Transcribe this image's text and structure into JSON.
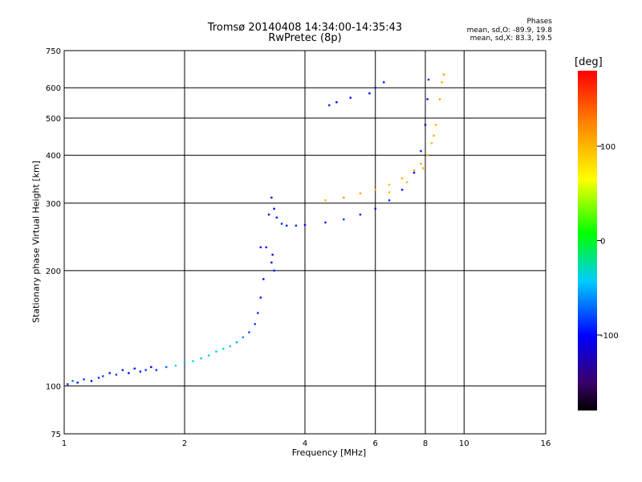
{
  "title": {
    "line1": "Tromsø 20140408 14:34:00-14:35:43",
    "line2": "RwPretec (8p)"
  },
  "phases": {
    "heading": "Phases",
    "o_line": "mean, sd,O: -89.9, 19.8",
    "x_line": "mean, sd,X: 83.3, 19.5"
  },
  "colorbar": {
    "unit_label": "[deg]",
    "range": [
      -180,
      180
    ],
    "ticks": [
      "100",
      "0",
      "-100"
    ],
    "tick_values": [
      100,
      0,
      -100
    ]
  },
  "chart_data": {
    "type": "scatter",
    "title": "Tromsø 20140408 14:34:00-14:35:43",
    "subtitle": "RwPretec (8p)",
    "xlabel": "Frequency [MHz]",
    "ylabel": "Stationary phase Virtual Height [km]",
    "x_scale": "log",
    "y_scale": "log",
    "xlim": [
      1,
      16
    ],
    "ylim": [
      75,
      750
    ],
    "x_ticks": [
      1,
      2,
      4,
      6,
      8,
      10,
      16
    ],
    "x_tick_labels": [
      "1",
      "2",
      "4",
      "6",
      "8",
      "10",
      "16"
    ],
    "x_grid": [
      2,
      4,
      6,
      8,
      10
    ],
    "y_ticks": [
      75,
      100,
      200,
      300,
      400,
      500,
      600,
      750
    ],
    "y_tick_labels": [
      "75",
      "100",
      "200",
      "300",
      "400",
      "500",
      "600",
      "750"
    ],
    "y_grid": [
      100,
      200,
      300,
      400,
      500,
      600
    ],
    "grid": true,
    "color_metric": "phase [deg]",
    "series": [
      {
        "points": [
          [
            1.02,
            101,
            -90
          ],
          [
            1.05,
            103,
            -70
          ],
          [
            1.08,
            102,
            -95
          ],
          [
            1.12,
            104,
            -85
          ],
          [
            1.17,
            103,
            -100
          ],
          [
            1.22,
            105,
            -90
          ],
          [
            1.25,
            106,
            -80
          ],
          [
            1.3,
            108,
            -95
          ],
          [
            1.35,
            107,
            -85
          ],
          [
            1.4,
            110,
            -90
          ],
          [
            1.45,
            108,
            -100
          ],
          [
            1.5,
            111,
            -95
          ],
          [
            1.55,
            109,
            -90
          ],
          [
            1.6,
            110,
            -85
          ],
          [
            1.65,
            112,
            -100
          ],
          [
            1.7,
            110,
            -90
          ],
          [
            1.8,
            112,
            -70
          ],
          [
            1.9,
            113,
            -40
          ],
          [
            2.0,
            115,
            -50
          ],
          [
            2.1,
            116,
            -40
          ],
          [
            2.2,
            118,
            -45
          ],
          [
            2.3,
            120,
            -35
          ],
          [
            2.4,
            123,
            -40
          ],
          [
            2.5,
            125,
            -30
          ],
          [
            2.6,
            127,
            -45
          ],
          [
            2.7,
            130,
            -55
          ],
          [
            2.8,
            134,
            -60
          ],
          [
            2.9,
            138,
            -80
          ],
          [
            3.0,
            145,
            -85
          ],
          [
            3.05,
            155,
            -90
          ],
          [
            3.1,
            170,
            -95
          ],
          [
            3.15,
            190,
            -100
          ],
          [
            3.2,
            230,
            -95
          ],
          [
            3.25,
            280,
            -100
          ],
          [
            3.3,
            310,
            -105
          ],
          [
            3.35,
            290,
            -100
          ],
          [
            3.4,
            275,
            -95
          ],
          [
            3.5,
            265,
            -90
          ],
          [
            3.6,
            262,
            -95
          ],
          [
            3.8,
            262,
            -90
          ],
          [
            4.0,
            263,
            -95
          ],
          [
            4.5,
            267,
            -90
          ],
          [
            5.0,
            272,
            -85
          ],
          [
            5.5,
            280,
            -90
          ],
          [
            6.0,
            290,
            -95
          ],
          [
            6.5,
            305,
            -90
          ],
          [
            7.0,
            325,
            -95
          ],
          [
            7.5,
            360,
            -100
          ],
          [
            7.8,
            410,
            -95
          ],
          [
            8.0,
            480,
            -100
          ],
          [
            8.1,
            560,
            -95
          ],
          [
            8.15,
            630,
            -90
          ],
          [
            3.3,
            210,
            -95
          ],
          [
            3.32,
            220,
            -100
          ],
          [
            3.35,
            200,
            -90
          ],
          [
            3.1,
            230,
            -95
          ],
          [
            5.8,
            580,
            -100
          ],
          [
            6.3,
            620,
            -95
          ],
          [
            6.0,
            600,
            -90
          ],
          [
            5.2,
            565,
            -95
          ],
          [
            4.8,
            550,
            -100
          ],
          [
            4.6,
            540,
            -90
          ]
        ]
      },
      {
        "points": [
          [
            4.5,
            305,
            100
          ],
          [
            5.0,
            310,
            110
          ],
          [
            5.5,
            318,
            105
          ],
          [
            6.0,
            325,
            100
          ],
          [
            6.5,
            335,
            95
          ],
          [
            7.0,
            348,
            100
          ],
          [
            7.5,
            365,
            110
          ],
          [
            7.8,
            380,
            105
          ],
          [
            8.1,
            400,
            100
          ],
          [
            8.3,
            430,
            95
          ],
          [
            8.5,
            480,
            100
          ],
          [
            8.7,
            560,
            105
          ],
          [
            8.8,
            620,
            100
          ],
          [
            8.9,
            650,
            110
          ],
          [
            6.5,
            320,
            90
          ],
          [
            7.2,
            340,
            95
          ],
          [
            7.9,
            370,
            105
          ],
          [
            8.4,
            450,
            100
          ]
        ]
      }
    ],
    "annotations": []
  }
}
